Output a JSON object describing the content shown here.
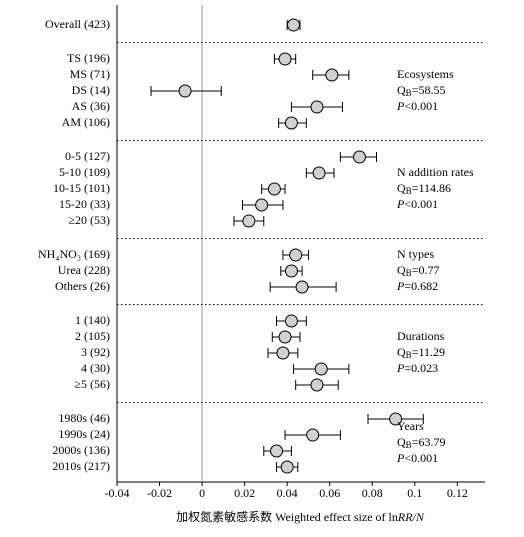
{
  "chart_data": {
    "type": "forest",
    "xlim": [
      -0.04,
      0.133
    ],
    "xticks": [
      -0.04,
      -0.02,
      0,
      0.02,
      0.04,
      0.06,
      0.08,
      0.1,
      0.12
    ],
    "xlabel": "加权氮素敏感系数 Weighted effect size of ln",
    "xlabel_italic": "RR/N",
    "q_symbol": "Q",
    "q_subscript": "B",
    "p_symbol": "P",
    "marker_color": "#d0d0d0",
    "groups": [
      {
        "categories": [
          "Overall (423)"
        ],
        "values": [
          0.043
        ],
        "ci_low": [
          0.04
        ],
        "ci_high": [
          0.046
        ]
      },
      {
        "categories": [
          "TS (196)",
          "MS (71)",
          "DS (14)",
          "AS (36)",
          "AM (106)"
        ],
        "values": [
          0.039,
          0.061,
          -0.008,
          0.054,
          0.042
        ],
        "ci_low": [
          0.034,
          0.052,
          -0.024,
          0.042,
          0.036
        ],
        "ci_high": [
          0.044,
          0.069,
          0.009,
          0.066,
          0.049
        ],
        "annotation": {
          "title": "Ecosystems",
          "q": "=58.55",
          "p": "<0.001"
        }
      },
      {
        "categories": [
          "0-5 (127)",
          "5-10 (109)",
          "10-15 (101)",
          "15-20 (33)",
          "≥20 (53)"
        ],
        "values": [
          0.074,
          0.055,
          0.034,
          0.028,
          0.022
        ],
        "ci_low": [
          0.065,
          0.049,
          0.028,
          0.019,
          0.015
        ],
        "ci_high": [
          0.082,
          0.062,
          0.039,
          0.038,
          0.029
        ],
        "annotation": {
          "title": "N addition rates",
          "q": "=114.86",
          "p": "<0.001"
        }
      },
      {
        "categories": [
          "NH₄NO₃ (169)",
          "Urea (228)",
          "Others (26)"
        ],
        "values": [
          0.044,
          0.042,
          0.047
        ],
        "ci_low": [
          0.038,
          0.037,
          0.032
        ],
        "ci_high": [
          0.05,
          0.047,
          0.063
        ],
        "annotation": {
          "title": "N types",
          "q": "=0.77",
          "p": "=0.682"
        }
      },
      {
        "categories": [
          "1 (140)",
          "2 (105)",
          "3 (92)",
          "4 (30)",
          "≥5 (56)"
        ],
        "values": [
          0.042,
          0.039,
          0.038,
          0.056,
          0.054
        ],
        "ci_low": [
          0.035,
          0.033,
          0.031,
          0.043,
          0.044
        ],
        "ci_high": [
          0.049,
          0.046,
          0.045,
          0.069,
          0.064
        ],
        "annotation": {
          "title": "Durations",
          "q": "=11.29",
          "p": "=0.023"
        }
      },
      {
        "categories": [
          "1980s (46)",
          "1990s (24)",
          "2000s (136)",
          "2010s (217)"
        ],
        "values": [
          0.091,
          0.052,
          0.035,
          0.04
        ],
        "ci_low": [
          0.078,
          0.039,
          0.029,
          0.035
        ],
        "ci_high": [
          0.104,
          0.065,
          0.042,
          0.045
        ],
        "annotation": {
          "title": "Years",
          "q": "=63.79",
          "p": "<0.001"
        }
      }
    ]
  }
}
